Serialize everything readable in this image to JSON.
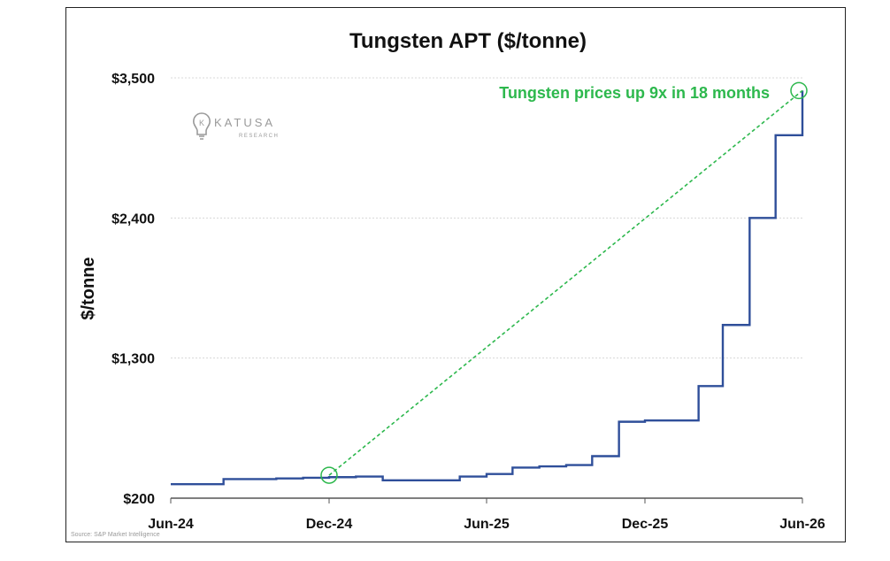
{
  "chart_data": {
    "type": "line",
    "title": "Tungsten APT ($/tonne)",
    "ylabel": "$/tonne",
    "xlabel": "",
    "ylim": [
      200,
      3500
    ],
    "x_tick_labels": [
      "Jun-24",
      "Dec-24",
      "Jun-25",
      "Dec-25",
      "Jun-26"
    ],
    "y_tick_labels": [
      "$200",
      "$1,300",
      "$2,400",
      "$3,500"
    ],
    "y_ticks": [
      200,
      1300,
      2400,
      3500
    ],
    "x_ticks": [
      "2024-06",
      "2024-12",
      "2025-06",
      "2025-12",
      "2026-06"
    ],
    "grid": true,
    "series": [
      {
        "color": "#2f4f9a",
        "step": true,
        "x": [
          "2024-06",
          "2024-08",
          "2024-09",
          "2024-10",
          "2024-11",
          "2024-12",
          "2025-01",
          "2025-02",
          "2025-03",
          "2025-04",
          "2025-05",
          "2025-06",
          "2025-07",
          "2025-08",
          "2025-09",
          "2025-10",
          "2025-11",
          "2025-12",
          "2026-01",
          "2026-02",
          "2026-03",
          "2026-04",
          "2026-05",
          "2026-06"
        ],
        "y": [
          310,
          350,
          350,
          355,
          360,
          365,
          370,
          340,
          340,
          340,
          370,
          390,
          440,
          450,
          460,
          530,
          800,
          810,
          810,
          1080,
          1560,
          2400,
          3050,
          3400
        ]
      }
    ],
    "annotation": {
      "text": "Tungsten prices up 9x in 18 months",
      "color": "#2db84d",
      "from": {
        "x": "2024-12",
        "y": 380
      },
      "to": {
        "x": "2026-06",
        "y": 3400
      }
    },
    "source": "Source: S&P Market Intelligence",
    "logo": {
      "name": "KATUSA",
      "sub": "RESEARCH"
    }
  }
}
